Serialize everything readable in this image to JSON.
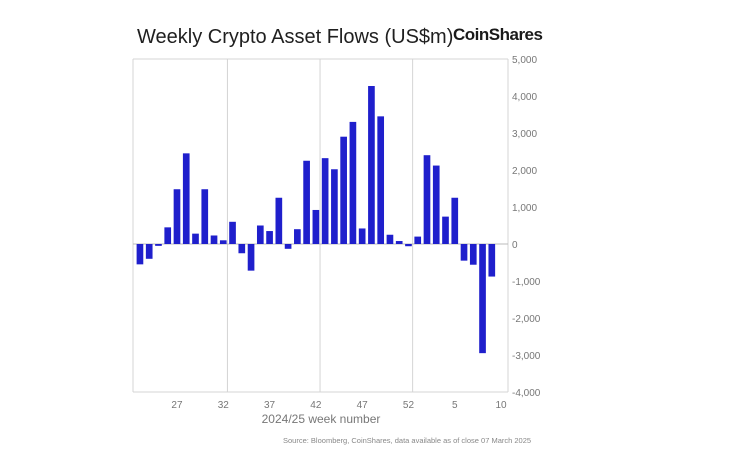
{
  "title": "Weekly Crypto Asset Flows (US$m)",
  "brand": "CoinShares",
  "source": "Source: Bloomberg, CoinShares, data available as of close 07 March 2025",
  "colors": {
    "bar": "#1f1fcc",
    "grid": "#d4d4d4",
    "axis_text": "#777777"
  },
  "chart_data": {
    "type": "bar",
    "title": "Weekly Crypto Asset Flows (US$m)",
    "xlabel": "2024/25 week number",
    "ylabel": "",
    "ylim": [
      -4000,
      5000
    ],
    "yticks": [
      5000,
      4000,
      3000,
      2000,
      1000,
      0,
      -1000,
      -2000,
      -3000,
      -4000
    ],
    "ytick_labels": [
      "5,000",
      "4,000",
      "3,000",
      "2,000",
      "1,000",
      "0",
      "-1,000",
      "-2,000",
      "-3,000",
      "-4,000"
    ],
    "xtick_labels": [
      "27",
      "32",
      "37",
      "42",
      "47",
      "52",
      "5",
      "10"
    ],
    "xtick_index": [
      4,
      9,
      14,
      19,
      24,
      29,
      34,
      39
    ],
    "grid": true,
    "legend": "none",
    "categories": [
      "23",
      "24",
      "25",
      "26",
      "27",
      "28",
      "29",
      "30",
      "31",
      "32",
      "33",
      "34",
      "35",
      "36",
      "37",
      "38",
      "39",
      "40",
      "41",
      "42",
      "43",
      "44",
      "45",
      "46",
      "47",
      "48",
      "49",
      "50",
      "51",
      "52",
      "1",
      "2",
      "3",
      "4",
      "5",
      "6",
      "7",
      "8",
      "9",
      "10"
    ],
    "values": [
      -550,
      -400,
      -50,
      450,
      1480,
      2450,
      280,
      1480,
      230,
      100,
      600,
      -250,
      -720,
      500,
      350,
      1250,
      -130,
      400,
      2250,
      920,
      2320,
      2020,
      2900,
      3300,
      420,
      4270,
      3450,
      250,
      80,
      -60,
      200,
      2400,
      2120,
      740,
      1250,
      -450,
      -560,
      -2950,
      -880,
      0
    ]
  }
}
